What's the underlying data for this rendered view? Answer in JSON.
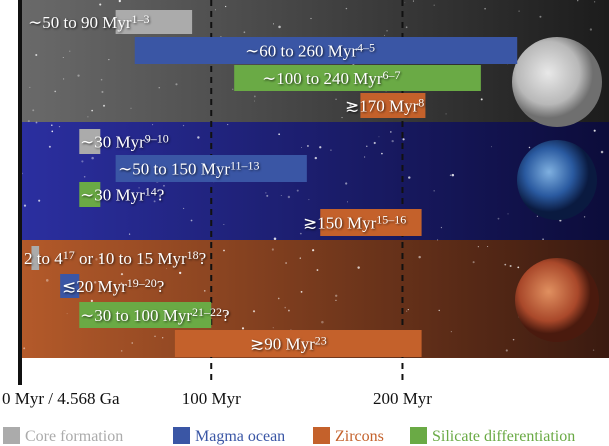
{
  "chart_data": {
    "type": "range-bar",
    "xlim": [
      0,
      308
    ],
    "xticks": [
      {
        "value": 0,
        "label": "0 Myr / 4.568 Ga"
      },
      {
        "value": 100,
        "label": "100 Myr"
      },
      {
        "value": 200,
        "label": "200 Myr"
      }
    ],
    "grid": true,
    "series": [
      {
        "name": "Core formation",
        "color": "#ababab"
      },
      {
        "name": "Magma ocean",
        "color": "#3a56a5"
      },
      {
        "name": "Zircons",
        "color": "#c4612b"
      },
      {
        "name": "Silicate differentiation",
        "color": "#6aaa45"
      }
    ],
    "panels": [
      {
        "bars": [
          {
            "series": 0,
            "start": 50,
            "end": 90,
            "label": [
              {
                "text": "∼50 to 90 Myr"
              },
              {
                "sup": "1–3"
              }
            ]
          },
          {
            "series": 1,
            "start": 60,
            "end": 260,
            "label": [
              {
                "text": "∼60 to 260 Myr"
              },
              {
                "sup": "4–5"
              }
            ]
          },
          {
            "series": 3,
            "start": 112,
            "end": 241,
            "label": [
              {
                "text": "∼100 to 240 Myr"
              },
              {
                "sup": "6–7"
              }
            ]
          },
          {
            "series": 2,
            "start": 178,
            "end": 212,
            "label": [
              {
                "text": "≳170 Myr"
              },
              {
                "sup": "8"
              }
            ]
          }
        ]
      },
      {
        "bars": [
          {
            "series": 0,
            "start": 31,
            "end": 42,
            "label": [
              {
                "text": "∼30 Myr"
              },
              {
                "sup": "9–10"
              }
            ]
          },
          {
            "series": 1,
            "start": 50,
            "end": 150,
            "label": [
              {
                "text": "∼50 to 150 Myr"
              },
              {
                "sup": "11–13"
              }
            ]
          },
          {
            "series": 3,
            "start": 31,
            "end": 42,
            "label": [
              {
                "text": "∼30 Myr"
              },
              {
                "sup": "14"
              },
              {
                "text": "?"
              }
            ]
          },
          {
            "series": 2,
            "start": 157,
            "end": 210,
            "label": [
              {
                "text": "≳150 Myr"
              },
              {
                "sup": "15–16"
              }
            ]
          }
        ]
      },
      {
        "bars": [
          {
            "series": 0,
            "start": 6,
            "end": 10,
            "label": [
              {
                "text": "2 to 4"
              },
              {
                "sup": "17"
              },
              {
                "text": " or 10 to 15 Myr"
              },
              {
                "sup": "18"
              },
              {
                "text": "?"
              }
            ]
          },
          {
            "series": 1,
            "start": 21,
            "end": 31,
            "label": [
              {
                "text": "≲20 Myr"
              },
              {
                "sup": "19–20"
              },
              {
                "text": "?"
              }
            ]
          },
          {
            "series": 3,
            "start": 31,
            "end": 100,
            "label": [
              {
                "text": "∼30 to 100 Myr"
              },
              {
                "sup": "21–22"
              },
              {
                "text": "?"
              }
            ]
          },
          {
            "series": 2,
            "start": 81,
            "end": 210,
            "label": [
              {
                "text": "≳90 Myr"
              },
              {
                "sup": "23"
              }
            ]
          }
        ]
      }
    ]
  }
}
